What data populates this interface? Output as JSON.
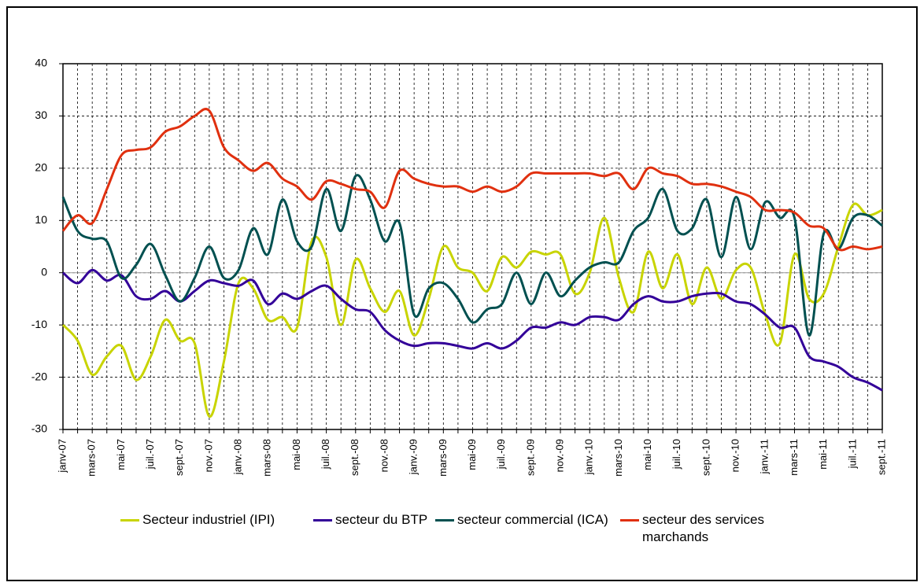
{
  "chart_data": {
    "type": "line",
    "categories": [
      "janv-07",
      null,
      "mars-07",
      null,
      "mai-07",
      null,
      "juil.-07",
      null,
      "sept.-07",
      null,
      "nov.-07",
      null,
      "janv.-08",
      null,
      "mars-08",
      null,
      "mai-08",
      null,
      "juil.-08",
      null,
      "sept.-08",
      null,
      "nov.-08",
      null,
      "janv.-09",
      null,
      "mars-09",
      null,
      "mai-09",
      null,
      "juil.-09",
      null,
      "sept.-09",
      null,
      "nov.-09",
      null,
      "janv.-10",
      null,
      "mars-10",
      null,
      "mai-10",
      null,
      "juil.-10",
      null,
      "sept.-10",
      null,
      "nov.-10",
      null,
      "janv.-11",
      null,
      "mars-11",
      null,
      "mai-11",
      null,
      "juil.-11",
      null,
      "sept.-11"
    ],
    "series": [
      {
        "name": "Secteur industriel (IPI)",
        "color": "#c8d400",
        "values": [
          -10,
          -13,
          -19.5,
          -16,
          -14,
          -20.5,
          -16,
          -9,
          -13,
          -13.5,
          -27.5,
          -17,
          -2,
          -3,
          -9,
          -8.5,
          -10.5,
          6,
          3,
          -10,
          2.5,
          -3,
          -7.5,
          -3.5,
          -12,
          -5,
          5,
          1,
          0,
          -3.5,
          3,
          1,
          4,
          3.5,
          3.5,
          -4,
          0,
          10.5,
          -1,
          -7.5,
          4,
          -3,
          3.5,
          -6,
          1,
          -5,
          0.5,
          1,
          -8,
          -13.5,
          3.5,
          -5,
          -4,
          5,
          13,
          11,
          12
        ]
      },
      {
        "name": "secteur du BTP",
        "color": "#330099",
        "values": [
          0,
          -2,
          0.5,
          -1.5,
          -0.5,
          -4.5,
          -5,
          -3.5,
          -5.5,
          -3.5,
          -1.5,
          -2,
          -2.5,
          -1.5,
          -6,
          -4,
          -5,
          -3.5,
          -2.5,
          -5,
          -7,
          -7.5,
          -11,
          -13,
          -14,
          -13.5,
          -13.5,
          -14,
          -14.5,
          -13.5,
          -14.5,
          -13,
          -10.5,
          -10.5,
          -9.5,
          -10,
          -8.5,
          -8.5,
          -9,
          -6,
          -4.5,
          -5.5,
          -5.5,
          -4.5,
          -4,
          -4,
          -5.5,
          -6,
          -8,
          -10.5,
          -10.5,
          -16,
          -17,
          -18,
          -20,
          -21,
          -22.5
        ]
      },
      {
        "name": "secteur commercial (ICA)",
        "color": "#005050",
        "values": [
          14.5,
          8,
          6.5,
          6,
          -1,
          1.5,
          5.5,
          -0.5,
          -5.5,
          -1,
          5,
          -1,
          0.5,
          8.5,
          3.5,
          14,
          6,
          5,
          16,
          8,
          18.5,
          14,
          6,
          9.5,
          -8,
          -3,
          -2,
          -5,
          -9.5,
          -7,
          -6,
          0,
          -6,
          0,
          -4.5,
          -1.5,
          1,
          2,
          2,
          8,
          10.5,
          16,
          8,
          8.5,
          14,
          3,
          14.5,
          4.5,
          13.5,
          10.5,
          10.5,
          -12,
          7.5,
          4.5,
          10.5,
          11,
          9
        ]
      },
      {
        "name": "secteur des services marchands",
        "color": "#e0300f",
        "values": [
          8,
          11,
          9.5,
          16,
          22.5,
          23.5,
          24,
          27,
          28,
          30,
          31,
          24,
          21.5,
          19.5,
          21,
          18,
          16.5,
          14,
          17.5,
          17,
          16,
          15.5,
          12.5,
          19.5,
          18,
          17,
          16.5,
          16.5,
          15.5,
          16.5,
          15.5,
          16.5,
          19,
          19,
          19,
          19,
          19,
          18.5,
          19,
          16,
          20,
          19,
          18.5,
          17,
          17,
          16.5,
          15.5,
          14.5,
          12,
          12,
          11.5,
          9,
          8.5,
          4.5,
          5,
          4.5,
          5
        ]
      }
    ],
    "ylim": [
      -30,
      40
    ],
    "yticks": [
      -30,
      -20,
      -10,
      0,
      10,
      20,
      30,
      40
    ],
    "grid": true
  }
}
